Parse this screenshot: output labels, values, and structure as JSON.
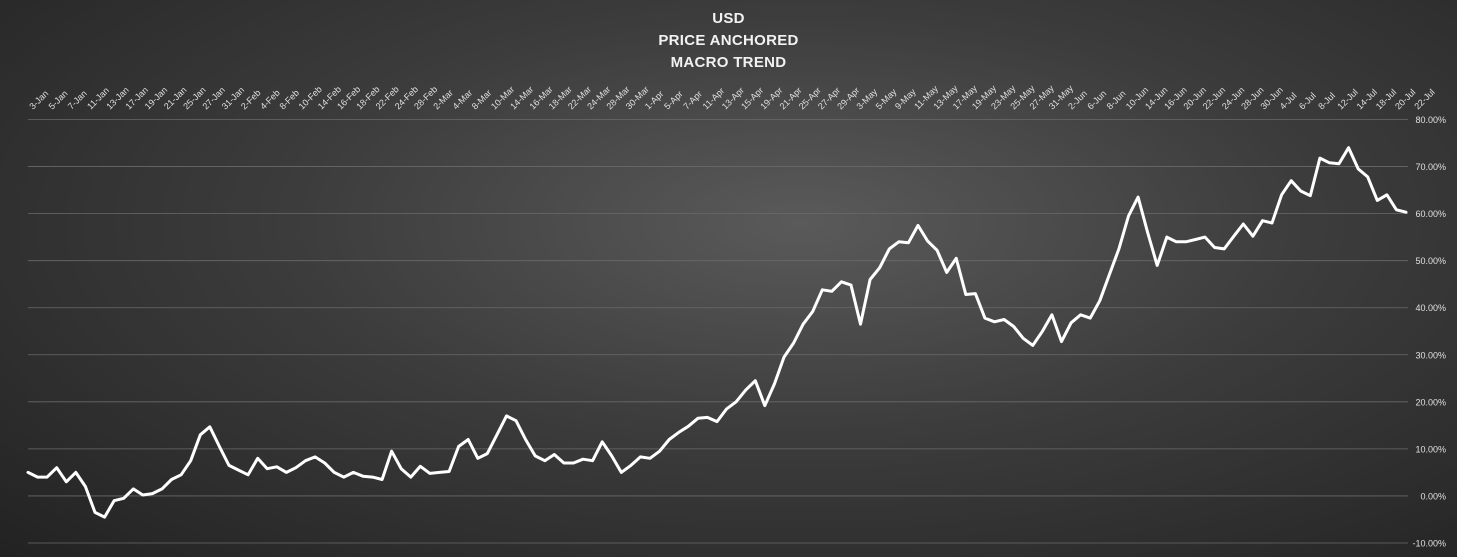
{
  "title_lines": [
    "USD",
    "PRICE ANCHORED",
    "MACRO TREND"
  ],
  "colors": {
    "line": "#ffffff",
    "grid": "#6a6a6a",
    "text": "#e0e0e0"
  },
  "chart_data": {
    "type": "line",
    "title": "USD PRICE ANCHORED MACRO TREND",
    "xlabel": "",
    "ylabel": "",
    "ylim": [
      -10,
      80
    ],
    "y_ticks": [
      80,
      70,
      60,
      50,
      40,
      30,
      20,
      10,
      0,
      -10
    ],
    "y_tick_labels": [
      "80.00%",
      "70.00%",
      "60.00%",
      "50.00%",
      "40.00%",
      "30.00%",
      "20.00%",
      "10.00%",
      "0.00%",
      "-10.00%"
    ],
    "grid": true,
    "x_tick_labels": [
      "3-Jan",
      "5-Jan",
      "7-Jan",
      "11-Jan",
      "13-Jan",
      "17-Jan",
      "19-Jan",
      "21-Jan",
      "25-Jan",
      "27-Jan",
      "31-Jan",
      "2-Feb",
      "4-Feb",
      "8-Feb",
      "10-Feb",
      "14-Feb",
      "16-Feb",
      "18-Feb",
      "22-Feb",
      "24-Feb",
      "28-Feb",
      "2-Mar",
      "4-Mar",
      "8-Mar",
      "10-Mar",
      "14-Mar",
      "16-Mar",
      "18-Mar",
      "22-Mar",
      "24-Mar",
      "28-Mar",
      "30-Mar",
      "1-Apr",
      "5-Apr",
      "7-Apr",
      "11-Apr",
      "13-Apr",
      "15-Apr",
      "19-Apr",
      "21-Apr",
      "25-Apr",
      "27-Apr",
      "29-Apr",
      "3-May",
      "5-May",
      "9-May",
      "11-May",
      "13-May",
      "17-May",
      "19-May",
      "23-May",
      "25-May",
      "27-May",
      "31-May",
      "2-Jun",
      "6-Jun",
      "8-Jun",
      "10-Jun",
      "14-Jun",
      "16-Jun",
      "20-Jun",
      "22-Jun",
      "24-Jun",
      "28-Jun",
      "30-Jun",
      "4-Jul",
      "6-Jul",
      "8-Jul",
      "12-Jul",
      "14-Jul",
      "18-Jul",
      "20-Jul",
      "22-Jul"
    ],
    "series": [
      {
        "values": [
          5.0,
          4.0,
          4.0,
          6.0,
          3.0,
          5.0,
          2.0,
          -3.5,
          -4.5,
          -1.0,
          -0.5,
          1.5,
          0.2,
          0.5,
          1.5,
          3.5,
          4.5,
          7.5,
          13.0,
          14.7,
          10.5,
          6.5,
          5.5,
          4.5,
          8.0,
          5.8,
          6.2,
          5.0,
          6.0,
          7.5,
          8.3,
          7.0,
          5.0,
          4.0,
          5.0,
          4.2,
          4.0,
          3.5,
          9.5,
          5.8,
          4.0,
          6.3,
          4.8,
          5.0,
          5.2,
          10.5,
          12.0,
          8.0,
          9.0,
          13.0,
          17.0,
          16.0,
          12.0,
          8.5,
          7.5,
          8.8,
          7.0,
          7.0,
          7.8,
          7.5,
          11.5,
          8.5,
          5.0,
          6.5,
          8.3,
          8.0,
          9.5,
          12.0,
          13.5,
          14.8,
          16.5,
          16.7,
          15.8,
          18.5,
          20.0,
          22.5,
          24.5,
          19.2,
          23.8,
          29.5,
          32.5,
          36.5,
          39.2,
          43.8,
          43.5,
          45.5,
          44.8,
          36.5,
          46.0,
          48.5,
          52.5,
          54.0,
          53.8,
          57.5,
          54.2,
          52.2,
          47.5,
          50.5,
          42.8,
          43.0,
          37.8,
          37.0,
          37.5,
          36.0,
          33.5,
          32.0,
          35.0,
          38.5,
          32.8,
          36.8,
          38.5,
          37.8,
          41.5,
          47.0,
          52.5,
          59.5,
          63.5,
          56.0,
          49.0,
          55.0,
          54.0,
          54.0,
          54.5,
          55.0,
          52.8,
          52.5,
          55.2,
          57.8,
          55.2,
          58.5,
          58.0,
          64.0,
          67.0,
          64.8,
          63.8,
          71.8,
          70.8,
          70.6,
          74.0,
          69.5,
          67.8,
          62.8,
          64.0,
          60.8,
          60.3
        ]
      }
    ]
  }
}
